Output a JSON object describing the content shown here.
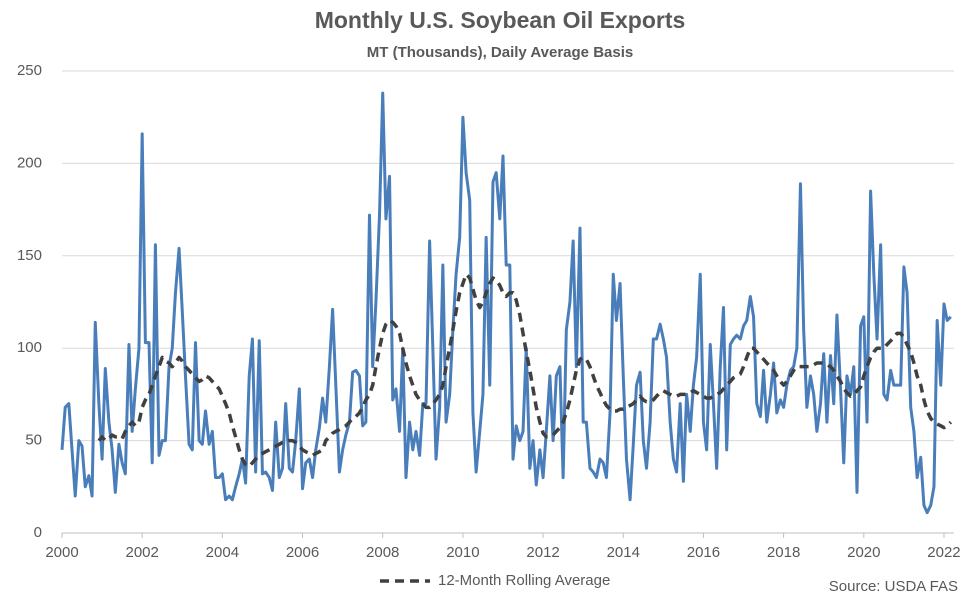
{
  "chart_data": {
    "type": "line",
    "title": "Monthly U.S. Soybean Oil Exports",
    "subtitle": "MT (Thousands), Daily Average Basis",
    "source": "Source: USDA FAS",
    "xlim": [
      2000,
      2022.25
    ],
    "xticks": [
      2000,
      2002,
      2004,
      2006,
      2008,
      2010,
      2012,
      2014,
      2016,
      2018,
      2020,
      2022
    ],
    "ylim": [
      0,
      250
    ],
    "yticks": [
      0,
      50,
      100,
      150,
      200,
      250
    ],
    "grid": true,
    "legend": "bottom",
    "x": [
      2000,
      2000.08,
      2000.17,
      2000.25,
      2000.33,
      2000.42,
      2000.5,
      2000.58,
      2000.67,
      2000.75,
      2000.83,
      2000.92,
      2001,
      2001.08,
      2001.17,
      2001.25,
      2001.33,
      2001.42,
      2001.5,
      2001.58,
      2001.67,
      2001.75,
      2001.83,
      2001.92,
      2002,
      2002.08,
      2002.17,
      2002.25,
      2002.33,
      2002.42,
      2002.5,
      2002.58,
      2002.67,
      2002.75,
      2002.83,
      2002.92,
      2003,
      2003.08,
      2003.17,
      2003.25,
      2003.33,
      2003.42,
      2003.5,
      2003.58,
      2003.67,
      2003.75,
      2003.83,
      2003.92,
      2004,
      2004.08,
      2004.17,
      2004.25,
      2004.33,
      2004.42,
      2004.5,
      2004.58,
      2004.67,
      2004.75,
      2004.83,
      2004.92,
      2005,
      2005.08,
      2005.17,
      2005.25,
      2005.33,
      2005.42,
      2005.5,
      2005.58,
      2005.67,
      2005.75,
      2005.83,
      2005.92,
      2006,
      2006.08,
      2006.17,
      2006.25,
      2006.33,
      2006.42,
      2006.5,
      2006.58,
      2006.67,
      2006.75,
      2006.83,
      2006.92,
      2007,
      2007.08,
      2007.17,
      2007.25,
      2007.33,
      2007.42,
      2007.5,
      2007.58,
      2007.67,
      2007.75,
      2007.83,
      2007.92,
      2008,
      2008.08,
      2008.17,
      2008.25,
      2008.33,
      2008.42,
      2008.5,
      2008.58,
      2008.67,
      2008.75,
      2008.83,
      2008.92,
      2009,
      2009.08,
      2009.17,
      2009.25,
      2009.33,
      2009.42,
      2009.5,
      2009.58,
      2009.67,
      2009.75,
      2009.83,
      2009.92,
      2010,
      2010.08,
      2010.17,
      2010.25,
      2010.33,
      2010.42,
      2010.5,
      2010.58,
      2010.67,
      2010.75,
      2010.83,
      2010.92,
      2011,
      2011.08,
      2011.17,
      2011.25,
      2011.33,
      2011.42,
      2011.5,
      2011.58,
      2011.67,
      2011.75,
      2011.83,
      2011.92,
      2012,
      2012.08,
      2012.17,
      2012.25,
      2012.33,
      2012.42,
      2012.5,
      2012.58,
      2012.67,
      2012.75,
      2012.83,
      2012.92,
      2013,
      2013.08,
      2013.17,
      2013.25,
      2013.33,
      2013.42,
      2013.5,
      2013.58,
      2013.67,
      2013.75,
      2013.83,
      2013.92,
      2014,
      2014.08,
      2014.17,
      2014.25,
      2014.33,
      2014.42,
      2014.5,
      2014.58,
      2014.67,
      2014.75,
      2014.83,
      2014.92,
      2015,
      2015.08,
      2015.17,
      2015.25,
      2015.33,
      2015.42,
      2015.5,
      2015.58,
      2015.67,
      2015.75,
      2015.83,
      2015.92,
      2016,
      2016.08,
      2016.17,
      2016.25,
      2016.33,
      2016.42,
      2016.5,
      2016.58,
      2016.67,
      2016.75,
      2016.83,
      2016.92,
      2017,
      2017.08,
      2017.17,
      2017.25,
      2017.33,
      2017.42,
      2017.5,
      2017.58,
      2017.67,
      2017.75,
      2017.83,
      2017.92,
      2018,
      2018.08,
      2018.17,
      2018.25,
      2018.33,
      2018.42,
      2018.5,
      2018.58,
      2018.67,
      2018.75,
      2018.83,
      2018.92,
      2019,
      2019.08,
      2019.17,
      2019.25,
      2019.33,
      2019.42,
      2019.5,
      2019.58,
      2019.67,
      2019.75,
      2019.83,
      2019.92,
      2020,
      2020.08,
      2020.17,
      2020.25,
      2020.33,
      2020.42,
      2020.5,
      2020.58,
      2020.67,
      2020.75,
      2020.83,
      2020.92,
      2021,
      2021.08,
      2021.17,
      2021.25,
      2021.33,
      2021.42,
      2021.5,
      2021.58,
      2021.67,
      2021.75,
      2021.83,
      2021.92,
      2022,
      2022.08,
      2022.17
    ],
    "series": [
      {
        "color": "#4a7ebb",
        "values": [
          45,
          68,
          70,
          45,
          20,
          50,
          47,
          25,
          31,
          20,
          114,
          70,
          40,
          89,
          60,
          45,
          22,
          48,
          38,
          32,
          102,
          55,
          78,
          100,
          216,
          103,
          103,
          38,
          156,
          42,
          50,
          50,
          90,
          100,
          130,
          154,
          120,
          85,
          48,
          45,
          103,
          50,
          48,
          66,
          48,
          55,
          30,
          30,
          32,
          18,
          20,
          18,
          25,
          32,
          40,
          27,
          85,
          105,
          33,
          104,
          32,
          33,
          30,
          23,
          60,
          30,
          35,
          70,
          35,
          33,
          50,
          78,
          24,
          38,
          40,
          30,
          45,
          57,
          73,
          60,
          90,
          121,
          80,
          33,
          45,
          53,
          60,
          87,
          88,
          85,
          58,
          60,
          172,
          90,
          125,
          172,
          238,
          170,
          193,
          72,
          78,
          55,
          100,
          30,
          60,
          45,
          55,
          42,
          70,
          70,
          158,
          100,
          40,
          68,
          145,
          60,
          75,
          110,
          140,
          160,
          225,
          195,
          180,
          65,
          33,
          55,
          75,
          160,
          80,
          190,
          195,
          170,
          204,
          145,
          145,
          40,
          58,
          50,
          55,
          100,
          35,
          50,
          26,
          45,
          30,
          55,
          85,
          50,
          85,
          90,
          30,
          110,
          125,
          158,
          90,
          165,
          60,
          60,
          35,
          33,
          30,
          40,
          38,
          30,
          65,
          140,
          115,
          135,
          85,
          40,
          18,
          48,
          80,
          87,
          50,
          35,
          60,
          105,
          105,
          113,
          105,
          95,
          60,
          40,
          33,
          70,
          28,
          75,
          55,
          80,
          95,
          140,
          60,
          45,
          102,
          70,
          35,
          90,
          122,
          45,
          102,
          105,
          107,
          105,
          112,
          115,
          128,
          117,
          70,
          63,
          88,
          60,
          75,
          92,
          65,
          72,
          68,
          80,
          88,
          90,
          100,
          189,
          110,
          68,
          85,
          75,
          55,
          70,
          97,
          60,
          96,
          70,
          118,
          78,
          38,
          85,
          75,
          90,
          22,
          112,
          117,
          60,
          185,
          140,
          105,
          156,
          75,
          72,
          88,
          80,
          80,
          80,
          144,
          130,
          68,
          55,
          30,
          41,
          15,
          11,
          15,
          25,
          115,
          80,
          124,
          115,
          117
        ]
      },
      {
        "name": "12-Month Rolling Average",
        "color": "#404040",
        "dash": true,
        "values": [
          null,
          null,
          null,
          null,
          null,
          null,
          null,
          null,
          null,
          null,
          null,
          50,
          52,
          50,
          51,
          53,
          52,
          52,
          51,
          55,
          58,
          60,
          58,
          60,
          68,
          72,
          75,
          80,
          85,
          90,
          95,
          93,
          92,
          90,
          92,
          95,
          93,
          90,
          88,
          86,
          84,
          82,
          83,
          85,
          84,
          82,
          80,
          78,
          74,
          70,
          65,
          58,
          52,
          45,
          40,
          37,
          36,
          38,
          40,
          42,
          43,
          44,
          45,
          46,
          47,
          48,
          49,
          49,
          50,
          50,
          49,
          47,
          45,
          44,
          43,
          42,
          43,
          44,
          45,
          50,
          52,
          54,
          55,
          56,
          57,
          58,
          60,
          62,
          63,
          65,
          68,
          72,
          75,
          80,
          90,
          100,
          108,
          113,
          115,
          114,
          112,
          108,
          100,
          92,
          85,
          80,
          75,
          72,
          70,
          68,
          68,
          70,
          72,
          75,
          80,
          90,
          100,
          110,
          120,
          130,
          135,
          140,
          138,
          132,
          126,
          122,
          125,
          130,
          135,
          138,
          137,
          134,
          130,
          128,
          130,
          130,
          126,
          118,
          108,
          98,
          88,
          78,
          68,
          60,
          54,
          52,
          52,
          53,
          55,
          57,
          60,
          65,
          72,
          80,
          88,
          94,
          95,
          94,
          90,
          85,
          80,
          76,
          72,
          69,
          67,
          66,
          66,
          67,
          67,
          68,
          69,
          70,
          72,
          74,
          72,
          71,
          71,
          72,
          74,
          76,
          77,
          76,
          75,
          74,
          74,
          75,
          75,
          75,
          76,
          77,
          76,
          75,
          74,
          73,
          73,
          74,
          75,
          76,
          78,
          80,
          82,
          84,
          85,
          86,
          90,
          95,
          100,
          100,
          98,
          96,
          94,
          92,
          90,
          88,
          85,
          82,
          80,
          82,
          85,
          88,
          90,
          90,
          90,
          90,
          90,
          91,
          92,
          92,
          92,
          91,
          90,
          88,
          85,
          82,
          78,
          76,
          74,
          75,
          77,
          79,
          85,
          90,
          95,
          98,
          100,
          100,
          100,
          102,
          104,
          106,
          108,
          108,
          106,
          102,
          98,
          92,
          85,
          80,
          72,
          66,
          62,
          60,
          59,
          58,
          57,
          58,
          60
        ]
      }
    ]
  }
}
